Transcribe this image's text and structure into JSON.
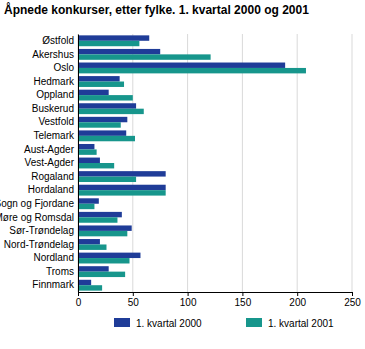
{
  "chart_data": {
    "type": "bar",
    "orientation": "horizontal",
    "title": "Åpnede konkurser, etter fylke. 1. kvartal 2000 og 2001",
    "categories": [
      "Østfold",
      "Akershus",
      "Oslo",
      "Hedmark",
      "Oppland",
      "Buskerud",
      "Vestfold",
      "Telemark",
      "Aust-Agder",
      "Vest-Agder",
      "Rogaland",
      "Hordaland",
      "Sogn og Fjordane",
      "Møre og Romsdal",
      "Sør-Trøndelag",
      "Nord-Trøndelag",
      "Nordland",
      "Troms",
      "Finnmark"
    ],
    "series": [
      {
        "name": "1. kvartal 2000",
        "color": "#1f3c98",
        "values": [
          65,
          75,
          189,
          38,
          28,
          53,
          45,
          44,
          15,
          20,
          80,
          80,
          19,
          40,
          49,
          20,
          57,
          28,
          12
        ]
      },
      {
        "name": "1. kvartal 2001",
        "color": "#17968c",
        "values": [
          56,
          121,
          208,
          42,
          50,
          60,
          39,
          52,
          17,
          33,
          53,
          80,
          15,
          36,
          45,
          26,
          47,
          43,
          22
        ]
      }
    ],
    "xlim": [
      0,
      250
    ],
    "xticks": [
      0,
      50,
      100,
      150,
      200,
      250
    ],
    "grid": true,
    "legend": "bottom"
  }
}
